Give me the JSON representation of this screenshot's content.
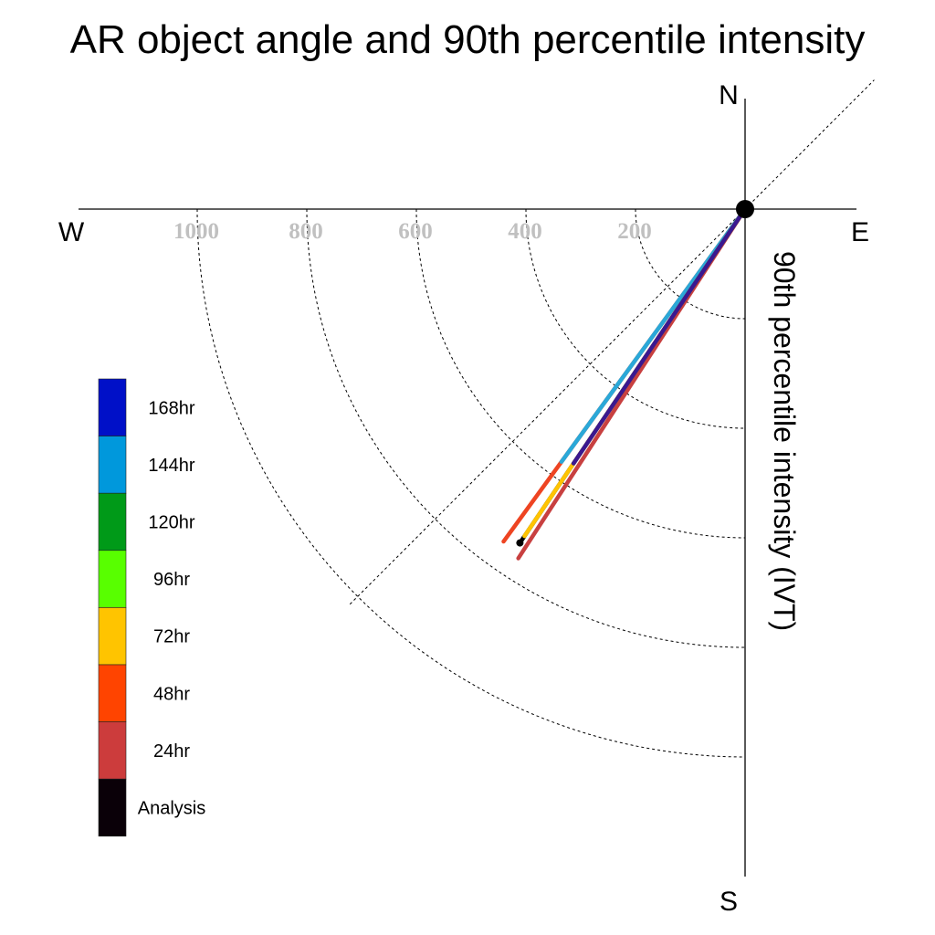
{
  "chart_data": {
    "type": "polar-vector",
    "title": "AR object angle and 90th percentile intensity",
    "ylabel": "90th percentile intensity (IVT)",
    "compass": {
      "north": "N",
      "south": "S",
      "east": "E",
      "west": "W"
    },
    "radial_ticks": [
      200,
      400,
      600,
      800,
      1000
    ],
    "radial_tick_labels": [
      "200",
      "400",
      "600",
      "800",
      "1000"
    ],
    "rmax": 1200,
    "diagonal_guide_deg": 45,
    "grid": true,
    "legend": {
      "placement": "left",
      "entries": [
        {
          "label": "168hr",
          "color": "#0010c8"
        },
        {
          "label": "144hr",
          "color": "#0098dc"
        },
        {
          "label": "120hr",
          "color": "#009a18"
        },
        {
          "label": "96hr",
          "color": "#58ff00"
        },
        {
          "label": "72hr",
          "color": "#ffc400"
        },
        {
          "label": "48hr",
          "color": "#ff4400"
        },
        {
          "label": "24hr",
          "color": "#cc3c3c"
        },
        {
          "label": "Analysis",
          "color": "#0a0008"
        }
      ]
    },
    "series": [
      {
        "name": "48hr",
        "color": "#ee4422",
        "angle_deg": 216,
        "intensity": 750
      },
      {
        "name": "144hr",
        "color": "#2aa8d8",
        "angle_deg": 216,
        "intensity": 570
      },
      {
        "name": "24hr",
        "color": "#c84040",
        "angle_deg": 213,
        "intensity": 760
      },
      {
        "name": "Analysis",
        "color": "#000000",
        "angle_deg": 214,
        "intensity": 735
      },
      {
        "name": "72hr",
        "color": "#ffc400",
        "angle_deg": 214,
        "intensity": 720
      },
      {
        "name": "168hr",
        "color": "#3a1890",
        "angle_deg": 214,
        "intensity": 560
      }
    ]
  }
}
